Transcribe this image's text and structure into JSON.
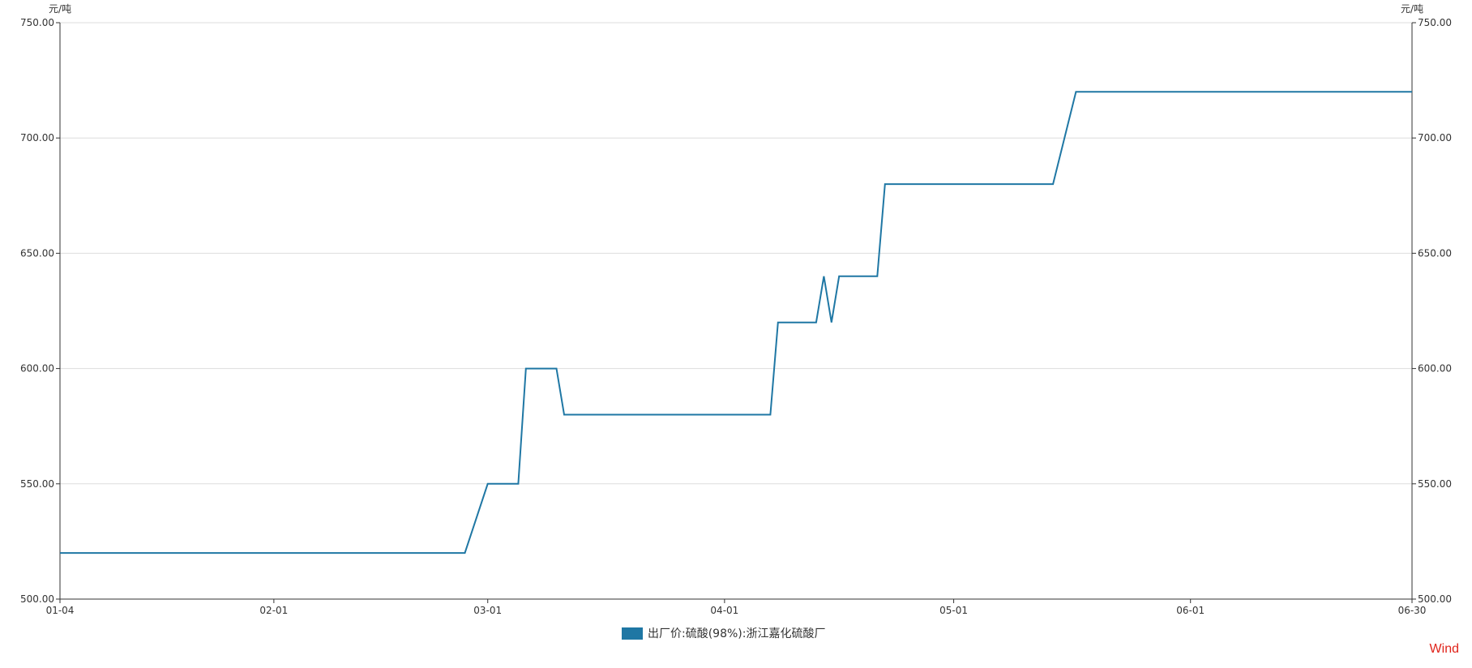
{
  "chart_data": {
    "type": "line",
    "unit_left": "元/吨",
    "unit_right": "元/吨",
    "ylim": [
      500,
      750
    ],
    "yticks": [
      "750.00",
      "700.00",
      "650.00",
      "600.00",
      "550.00",
      "500.00"
    ],
    "ytick_values": [
      750,
      700,
      650,
      600,
      550,
      500
    ],
    "xlim": [
      "01-04",
      "06-30"
    ],
    "xticks": [
      "01-04",
      "02-01",
      "03-01",
      "04-01",
      "05-01",
      "06-01",
      "06-30"
    ],
    "grid": true,
    "legend_position": "bottom-center",
    "series": [
      {
        "name": "出厂价:硫酸(98%):浙江嘉化硫酸厂",
        "color": "#1f77a4",
        "points": [
          {
            "x": "01-04",
            "y": 520
          },
          {
            "x": "02-26",
            "y": 520
          },
          {
            "x": "03-01",
            "y": 550
          },
          {
            "x": "03-05",
            "y": 550
          },
          {
            "x": "03-06",
            "y": 600
          },
          {
            "x": "03-10",
            "y": 600
          },
          {
            "x": "03-11",
            "y": 580
          },
          {
            "x": "04-07",
            "y": 580
          },
          {
            "x": "04-08",
            "y": 620
          },
          {
            "x": "04-13",
            "y": 620
          },
          {
            "x": "04-14",
            "y": 640
          },
          {
            "x": "04-15",
            "y": 620
          },
          {
            "x": "04-16",
            "y": 640
          },
          {
            "x": "04-21",
            "y": 640
          },
          {
            "x": "04-22",
            "y": 680
          },
          {
            "x": "05-14",
            "y": 680
          },
          {
            "x": "05-17",
            "y": 720
          },
          {
            "x": "06-30",
            "y": 720
          }
        ]
      }
    ]
  },
  "watermark": "Wind"
}
